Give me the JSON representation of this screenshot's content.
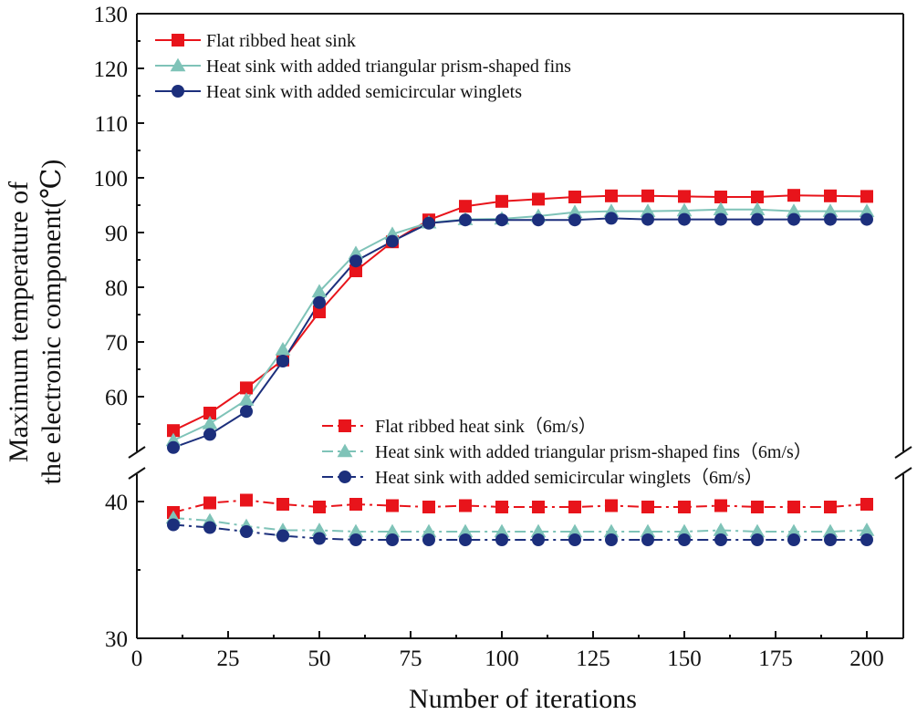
{
  "chart_data": {
    "type": "line",
    "title": "",
    "xlabel": "Number of iterations",
    "ylabel_line1": "Maximum temperature of",
    "ylabel_line2": "the electronic component(℃)",
    "xlim": [
      0,
      210
    ],
    "x_ticks": [
      0,
      25,
      50,
      75,
      100,
      125,
      150,
      175,
      200
    ],
    "y_ticks_upper": [
      60,
      70,
      80,
      90,
      100,
      110,
      120,
      130
    ],
    "y_ticks_lower": [
      30,
      40
    ],
    "axis_break": true,
    "x": [
      10,
      20,
      30,
      40,
      50,
      60,
      70,
      80,
      90,
      100,
      110,
      120,
      130,
      140,
      150,
      160,
      170,
      180,
      190,
      200
    ],
    "series": [
      {
        "name": "Flat ribbed heat sink",
        "group": "upper",
        "color": "#e8141b",
        "marker": "square",
        "dash": "solid",
        "values": [
          53.8,
          57.0,
          61.6,
          66.7,
          75.5,
          83.0,
          88.3,
          92.3,
          94.8,
          95.7,
          96.1,
          96.5,
          96.7,
          96.7,
          96.6,
          96.5,
          96.5,
          96.8,
          96.7,
          96.6
        ]
      },
      {
        "name": "Heat sink with added triangular prism-shaped fins",
        "group": "upper",
        "color": "#7fc3b8",
        "marker": "triangle",
        "dash": "solid",
        "values": [
          52.0,
          55.1,
          59.4,
          68.6,
          79.2,
          86.2,
          89.7,
          91.8,
          92.4,
          92.5,
          93.0,
          93.7,
          93.9,
          93.9,
          94.0,
          94.2,
          94.2,
          93.9,
          93.9,
          93.9
        ]
      },
      {
        "name": "Heat sink with added semicircular winglets",
        "group": "upper",
        "color": "#1c2f7c",
        "marker": "circle",
        "dash": "solid",
        "values": [
          50.7,
          53.1,
          57.3,
          66.5,
          77.2,
          84.8,
          88.4,
          91.7,
          92.3,
          92.3,
          92.3,
          92.3,
          92.6,
          92.4,
          92.4,
          92.4,
          92.4,
          92.4,
          92.4,
          92.4
        ]
      },
      {
        "name": "Flat ribbed heat sink（6m/s）",
        "group": "lower",
        "color": "#e8141b",
        "marker": "square",
        "dash": "dashdot",
        "values": [
          39.2,
          39.9,
          40.1,
          39.8,
          39.6,
          39.8,
          39.7,
          39.6,
          39.7,
          39.6,
          39.6,
          39.6,
          39.7,
          39.6,
          39.6,
          39.7,
          39.6,
          39.6,
          39.6,
          39.8
        ]
      },
      {
        "name": "Heat sink with added triangular prism-shaped fins（6m/s）",
        "group": "lower",
        "color": "#7fc3b8",
        "marker": "triangle",
        "dash": "dashdot",
        "values": [
          38.8,
          38.6,
          38.2,
          37.9,
          37.9,
          37.8,
          37.8,
          37.8,
          37.8,
          37.8,
          37.8,
          37.8,
          37.8,
          37.8,
          37.8,
          37.9,
          37.8,
          37.8,
          37.8,
          37.9
        ]
      },
      {
        "name": "Heat sink with added semicircular winglets（6m/s）",
        "group": "lower",
        "color": "#1c2f7c",
        "marker": "circle",
        "dash": "dashdot",
        "values": [
          38.3,
          38.1,
          37.8,
          37.5,
          37.3,
          37.2,
          37.2,
          37.2,
          37.2,
          37.2,
          37.2,
          37.2,
          37.2,
          37.2,
          37.2,
          37.2,
          37.2,
          37.2,
          37.2,
          37.2
        ]
      }
    ],
    "legend_upper_position": "top-left",
    "legend_lower_position": "center"
  }
}
